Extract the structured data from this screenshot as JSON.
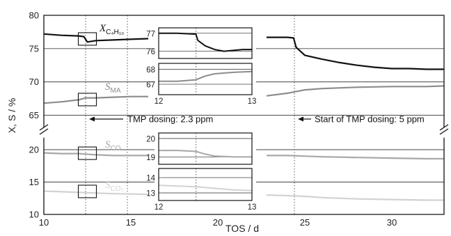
{
  "chart_data": {
    "type": "line",
    "xlabel": "TOS / d",
    "ylabel": "X, S / %",
    "xlim": [
      10,
      33
    ],
    "x_ticks": [
      10,
      15,
      20,
      25,
      30
    ],
    "y_upper_ticks": [
      65,
      70,
      75,
      80
    ],
    "y_lower_ticks": [
      10,
      15,
      20
    ],
    "y_upper_range": [
      64,
      80
    ],
    "y_lower_range": [
      10,
      21
    ],
    "y_axis_broken": true,
    "grid_y": true,
    "vertical_markers": [
      12.4,
      14.8,
      24.4
    ],
    "series": [
      {
        "name_main": "X",
        "name_sub": "C4H10",
        "name_sub_display": "C₄H₁₀",
        "color": "#111111",
        "panel": "upper",
        "x": [
          10,
          11,
          12,
          12.3,
          12.5,
          13,
          14,
          15,
          16,
          22.8,
          24,
          24.35,
          24.5,
          25,
          26,
          27,
          28,
          29,
          30,
          31,
          32,
          33
        ],
        "y": [
          77.2,
          77.0,
          76.9,
          76.8,
          76.0,
          76.2,
          76.3,
          76.4,
          76.5,
          76.7,
          76.7,
          76.6,
          75.2,
          74.0,
          73.4,
          72.9,
          72.5,
          72.2,
          72.0,
          72.0,
          71.9,
          71.9
        ]
      },
      {
        "name_main": "S",
        "name_sub": "MA",
        "color": "#8c8c8c",
        "panel": "upper",
        "x": [
          10,
          11,
          12,
          12.4,
          13,
          14,
          15,
          16,
          22.8,
          24,
          25,
          26,
          28,
          30,
          32,
          33
        ],
        "y": [
          66.8,
          67.0,
          67.3,
          67.6,
          67.6,
          67.7,
          67.8,
          67.8,
          67.9,
          68.3,
          68.8,
          69.0,
          69.2,
          69.3,
          69.3,
          69.4
        ]
      },
      {
        "name_main": "S",
        "name_sub": "CO",
        "color": "#a8a8a8",
        "panel": "lower",
        "x": [
          10,
          11,
          12,
          13,
          14,
          16,
          22.8,
          24,
          25,
          26,
          28,
          30,
          32,
          33
        ],
        "y": [
          19.5,
          19.4,
          19.4,
          19.2,
          19.1,
          19.1,
          19.1,
          19.1,
          19.0,
          18.9,
          18.8,
          18.7,
          18.6,
          18.6
        ]
      },
      {
        "name_main": "S",
        "name_sub": "CO2",
        "name_sub_display": "CO₂",
        "color": "#d2d2d2",
        "panel": "lower",
        "x": [
          10,
          11,
          12,
          13,
          14,
          16,
          22.8,
          24,
          25,
          26,
          28,
          30,
          32,
          33
        ],
        "y": [
          13.6,
          13.5,
          13.4,
          13.3,
          13.2,
          13.1,
          13.0,
          12.9,
          12.8,
          12.6,
          12.4,
          12.3,
          12.2,
          12.2
        ]
      }
    ],
    "annotations": [
      {
        "text": "TMP dosing: 2.3 ppm",
        "x": 12.4,
        "panel": "upper",
        "y": 65
      },
      {
        "text": "Start of TMP dosing: 5 ppm",
        "x": 24.4,
        "panel": "upper",
        "y": 65
      }
    ],
    "insets": [
      {
        "series": "X_C4H10",
        "xlim": [
          12,
          13
        ],
        "ylim": [
          75.6,
          77.3
        ],
        "y_ticks": [
          76,
          77
        ],
        "x": [
          12,
          12.2,
          12.4,
          12.42,
          12.5,
          12.6,
          12.7,
          12.8,
          12.9,
          13
        ],
        "y": [
          77.0,
          77.0,
          76.95,
          76.6,
          76.3,
          76.1,
          76.0,
          76.05,
          76.1,
          76.1
        ]
      },
      {
        "series": "S_MA",
        "xlim": [
          12,
          13
        ],
        "ylim": [
          66.3,
          68.4
        ],
        "y_ticks": [
          67,
          68
        ],
        "x_ticks": [
          12,
          13
        ],
        "x": [
          12,
          12.2,
          12.4,
          12.5,
          12.6,
          12.8,
          13
        ],
        "y": [
          67.2,
          67.2,
          67.3,
          67.55,
          67.7,
          67.8,
          67.85
        ]
      },
      {
        "series": "S_CO",
        "xlim": [
          12,
          13
        ],
        "ylim": [
          18.6,
          20.3
        ],
        "y_ticks": [
          19,
          20
        ],
        "x": [
          12,
          12.2,
          12.4,
          12.5,
          12.6,
          12.8,
          13
        ],
        "y": [
          19.35,
          19.35,
          19.3,
          19.15,
          19.05,
          19.0,
          19.0
        ]
      },
      {
        "series": "S_CO2",
        "xlim": [
          12,
          13
        ],
        "ylim": [
          12.5,
          14.6
        ],
        "y_ticks": [
          13,
          14
        ],
        "x_ticks": [
          12,
          13
        ],
        "x": [
          12,
          12.2,
          12.4,
          12.6,
          12.8,
          13
        ],
        "y": [
          13.5,
          13.45,
          13.4,
          13.3,
          13.2,
          13.15
        ]
      }
    ]
  }
}
